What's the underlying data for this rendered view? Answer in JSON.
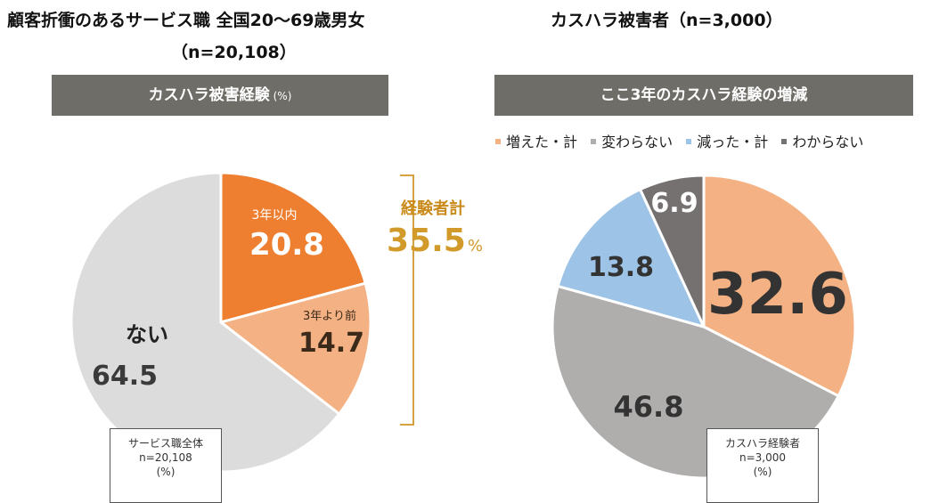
{
  "left": {
    "title_line1": "顧客折衝のあるサービス職 全国20～69歳男女",
    "title_line2": "（n=20,108）",
    "banner": "カスハラ被害経験",
    "banner_unit": "(%)",
    "total_label": "経験者計",
    "total_value": "35.5",
    "total_unit": "%",
    "note": [
      "サービス職全体",
      "n=20,108",
      "(%)"
    ]
  },
  "right": {
    "title": "カスハラ被害者（n=3,000）",
    "banner": "ここ3年のカスハラ経験の増減",
    "note": [
      "カスハラ経験者",
      "n=3,000",
      "(%)"
    ]
  },
  "colors": {
    "within3": "#ee7f31",
    "before3": "#f4b183",
    "none": "#dcdcdc",
    "increased": "#f4b183",
    "unchanged": "#b0adad",
    "decreased": "#9dc3e6",
    "unknown": "#767171",
    "banner": "#6f6d67",
    "accent": "#d19a2a"
  },
  "chart_data": [
    {
      "type": "pie",
      "title": "カスハラ被害経験",
      "unit": "%",
      "start": "12 o'clock, clockwise",
      "slices": [
        {
          "label": "3年以内",
          "value": 20.8
        },
        {
          "label": "3年より前",
          "value": 14.7
        },
        {
          "label": "ない",
          "value": 64.5
        }
      ]
    },
    {
      "type": "pie",
      "title": "ここ3年のカスハラ経験の増減",
      "unit": "%",
      "start": "12 o'clock, clockwise",
      "legend": "top",
      "series_names": [
        "増えた・計",
        "変わらない",
        "減った・計",
        "わからない"
      ],
      "slices": [
        {
          "label": "増えた・計",
          "value": 32.6
        },
        {
          "label": "変わらない",
          "value": 46.8
        },
        {
          "label": "減った・計",
          "value": 13.8
        },
        {
          "label": "わからない",
          "value": 6.9
        }
      ]
    }
  ]
}
